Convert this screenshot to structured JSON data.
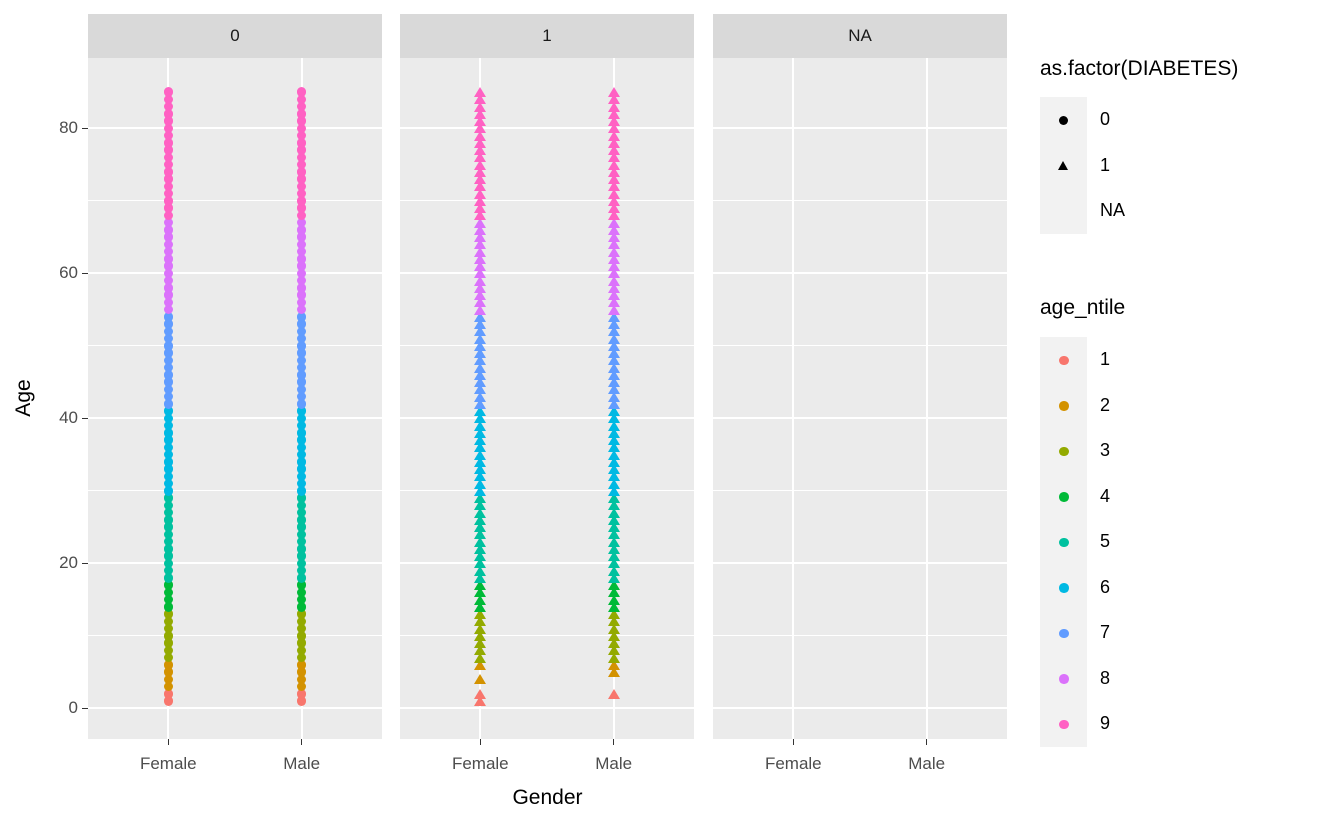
{
  "chart_data": {
    "type": "scatter",
    "faceting": {
      "variable": "as.factor(DIABETES)",
      "facets": [
        "0",
        "1",
        "NA"
      ]
    },
    "x_axis": {
      "title": "Gender",
      "categories": [
        "Female",
        "Male"
      ]
    },
    "y_axis": {
      "title": "Age",
      "ticks": [
        0,
        20,
        40,
        60,
        80
      ],
      "minor_gridlines": [
        10,
        30,
        50,
        70
      ],
      "range": [
        -4.2,
        89.7
      ]
    },
    "legend_position": "right",
    "shape_legend": {
      "title": "as.factor(DIABETES)",
      "entries": [
        {
          "label": "0",
          "shape": "circle"
        },
        {
          "label": "1",
          "shape": "triangle"
        },
        {
          "label": "NA",
          "shape": "none"
        }
      ]
    },
    "color_legend": {
      "title": "age_ntile",
      "entries": [
        {
          "label": "1",
          "color": "#F8766D"
        },
        {
          "label": "2",
          "color": "#D39200"
        },
        {
          "label": "3",
          "color": "#93AA00"
        },
        {
          "label": "4",
          "color": "#00BA38"
        },
        {
          "label": "5",
          "color": "#00C19F"
        },
        {
          "label": "6",
          "color": "#00B9E3"
        },
        {
          "label": "7",
          "color": "#619CFF"
        },
        {
          "label": "8",
          "color": "#DB72FB"
        },
        {
          "label": "9",
          "color": "#FF61C3"
        }
      ]
    },
    "age_ntile_bins": [
      {
        "ntile": "1",
        "age_min": 1,
        "age_max": 2,
        "color": "#F8766D"
      },
      {
        "ntile": "2",
        "age_min": 3,
        "age_max": 6,
        "color": "#D39200"
      },
      {
        "ntile": "3",
        "age_min": 7,
        "age_max": 13,
        "color": "#93AA00"
      },
      {
        "ntile": "4",
        "age_min": 14,
        "age_max": 17,
        "color": "#00BA38"
      },
      {
        "ntile": "5",
        "age_min": 18,
        "age_max": 29,
        "color": "#00C19F"
      },
      {
        "ntile": "6",
        "age_min": 30,
        "age_max": 41,
        "color": "#00B9E3"
      },
      {
        "ntile": "7",
        "age_min": 42,
        "age_max": 54,
        "color": "#619CFF"
      },
      {
        "ntile": "8",
        "age_min": 55,
        "age_max": 67,
        "color": "#DB72FB"
      },
      {
        "ntile": "9",
        "age_min": 68,
        "age_max": 85,
        "color": "#FF61C3"
      }
    ],
    "series": [
      {
        "facet": "0",
        "gender": "Female",
        "shape": "circle",
        "age_runs": [
          [
            1,
            85
          ]
        ]
      },
      {
        "facet": "0",
        "gender": "Male",
        "shape": "circle",
        "age_runs": [
          [
            1,
            85
          ]
        ]
      },
      {
        "facet": "1",
        "gender": "Female",
        "shape": "triangle",
        "age_runs": [
          [
            1,
            2
          ],
          [
            4,
            4
          ],
          [
            6,
            85
          ]
        ]
      },
      {
        "facet": "1",
        "gender": "Male",
        "shape": "triangle",
        "age_runs": [
          [
            2,
            2
          ],
          [
            5,
            85
          ]
        ]
      },
      {
        "facet": "NA",
        "gender": "Female",
        "shape": "none",
        "age_runs": []
      },
      {
        "facet": "NA",
        "gender": "Male",
        "shape": "none",
        "age_runs": []
      }
    ],
    "colors": {
      "panel_bg": "#EBEBEB",
      "strip_bg": "#D9D9D9",
      "gridline": "#FFFFFF",
      "legend_key_bg": "#F2F2F2",
      "axis_text": "#4D4D4D",
      "axis_title": "#000000",
      "strip_text": "#1A1A1A",
      "shape_key": "#000000",
      "tick_mark": "#333333"
    }
  }
}
